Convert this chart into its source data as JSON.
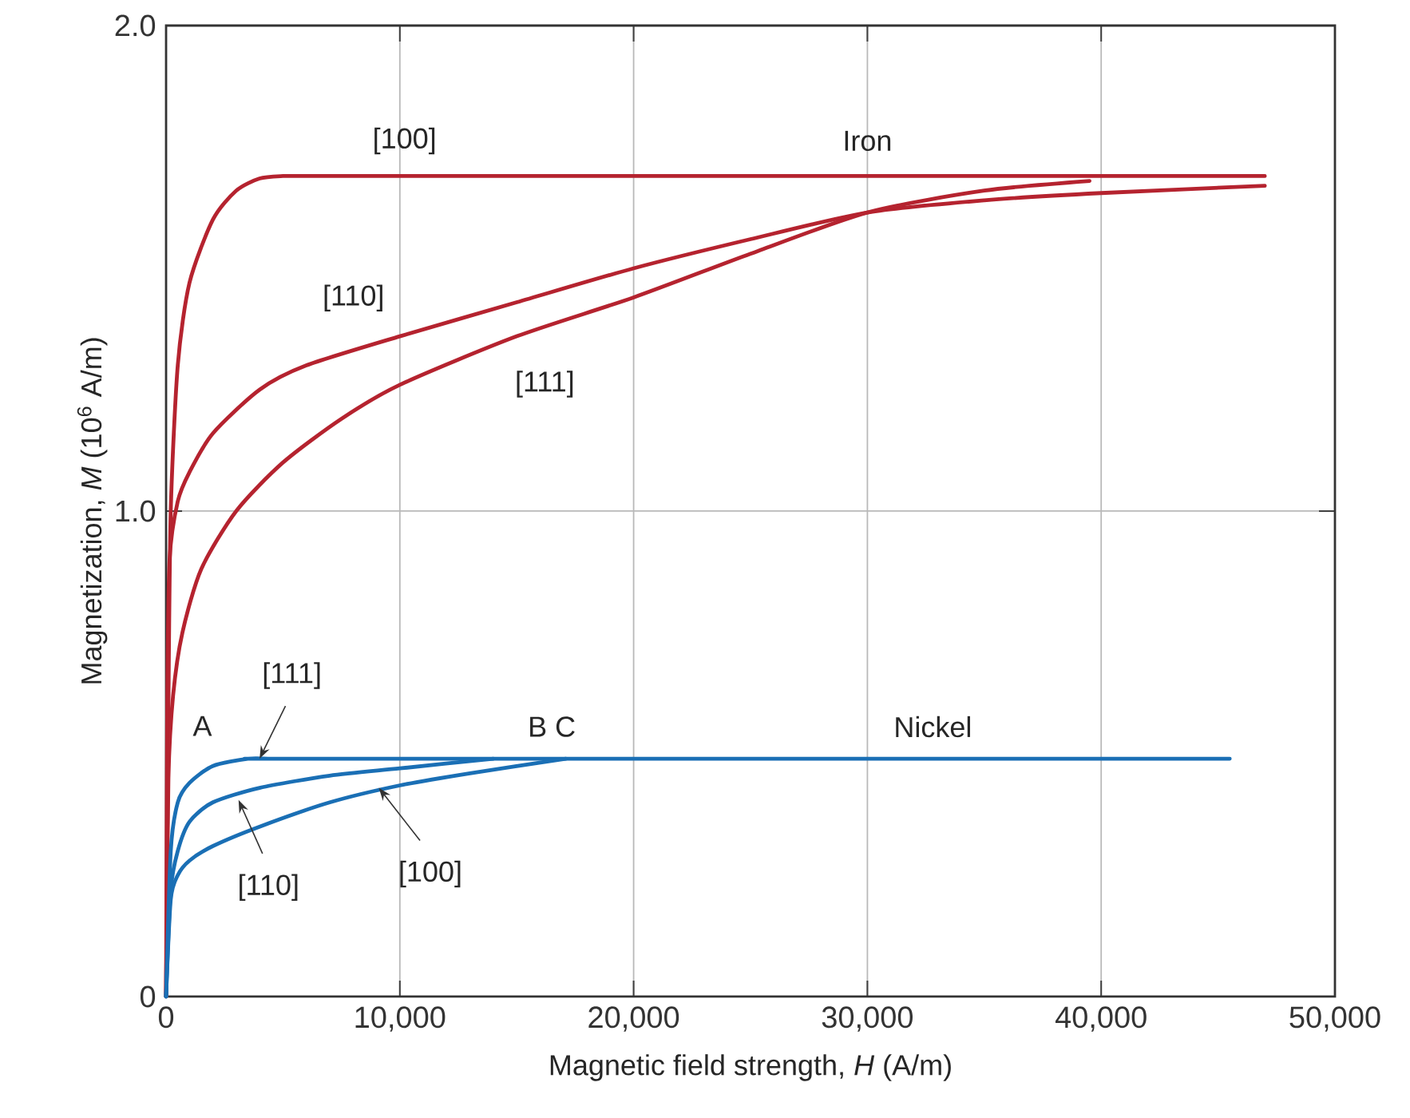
{
  "chart_data": {
    "type": "line",
    "xlabel": "Magnetic field strength, *H* (A/m)",
    "ylabel": "Magnetization, *M* (10$^{6}$ A/m)",
    "xlim": [
      0,
      50000
    ],
    "ylim": [
      0,
      2.0
    ],
    "xticks": [
      0,
      {
        "value": 10000,
        "label": "10,000"
      },
      {
        "value": 20000,
        "label": "20,000"
      },
      {
        "value": 30000,
        "label": "30,000"
      },
      {
        "value": 40000,
        "label": "40,000"
      },
      {
        "value": 50000,
        "label": "50,000"
      }
    ],
    "yticks": [
      0,
      {
        "value": 1,
        "label": "1.0"
      },
      {
        "value": 2,
        "label": "2.0"
      }
    ],
    "grid": true,
    "marker": "none",
    "line_style": "solid",
    "series": [
      {
        "color": "#b5232f",
        "x": [
          0,
          100,
          200,
          500,
          1000,
          2000,
          3000,
          4000,
          5000,
          6000,
          8000,
          47000
        ],
        "values": [
          0,
          0.6,
          1.0,
          1.3,
          1.47,
          1.6,
          1.66,
          1.685,
          1.69,
          1.69,
          1.69,
          1.69
        ]
      },
      {
        "color": "#b5232f",
        "x": [
          0,
          50,
          150,
          500,
          1000,
          2000,
          4000,
          6000,
          10000,
          15000,
          20000,
          25000,
          30000,
          35000,
          40000,
          47000
        ],
        "values": [
          0,
          0.6,
          0.9,
          1.02,
          1.08,
          1.16,
          1.25,
          1.3,
          1.36,
          1.43,
          1.5,
          1.56,
          1.615,
          1.64,
          1.655,
          1.67
        ]
      },
      {
        "color": "#b5232f",
        "x": [
          0,
          100,
          300,
          700,
          1500,
          3000,
          5000,
          7500,
          10000,
          15000,
          20000,
          25000,
          30000,
          35000,
          39500
        ],
        "values": [
          0,
          0.45,
          0.62,
          0.75,
          0.88,
          1.0,
          1.1,
          1.19,
          1.26,
          1.36,
          1.44,
          1.53,
          1.615,
          1.66,
          1.68
        ]
      },
      {
        "color": "#1a6fb5",
        "x": [
          0,
          200,
          500,
          1000,
          2000,
          3500,
          4500,
          6000,
          45500
        ],
        "values": [
          0,
          0.3,
          0.4,
          0.44,
          0.475,
          0.49,
          0.49,
          0.49,
          0.49
        ]
      },
      {
        "color": "#1a6fb5",
        "x": [
          0,
          200,
          500,
          1000,
          2000,
          4000,
          7000,
          10000,
          14000
        ],
        "values": [
          0,
          0.22,
          0.3,
          0.36,
          0.4,
          0.43,
          0.455,
          0.47,
          0.49
        ]
      },
      {
        "color": "#1a6fb5",
        "x": [
          0,
          200,
          500,
          1000,
          2000,
          4000,
          7000,
          10000,
          13000,
          17100
        ],
        "values": [
          0,
          0.2,
          0.25,
          0.28,
          0.31,
          0.35,
          0.4,
          0.435,
          0.46,
          0.49
        ]
      }
    ],
    "annotations": [
      {
        "text": "[100]",
        "x": 10200,
        "y": 1.69
      },
      {
        "text": "Iron",
        "x": 30000,
        "y": 1.69
      },
      {
        "text": "[110]",
        "x": 8700,
        "y": 1.34
      },
      {
        "text": "[111]",
        "x": 16200,
        "y": 1.38
      },
      {
        "text": "A",
        "x": 2100,
        "y": 0.475
      },
      {
        "text": "B C",
        "x": 16500,
        "y": 0.49
      },
      {
        "text": "Nickel",
        "x": 32800,
        "y": 0.49
      },
      {
        "text": "[111]",
        "x": 4000,
        "y": 0.49
      },
      {
        "text": "[110]",
        "x": 3100,
        "y": 0.405
      },
      {
        "text": "[100]",
        "x": 9100,
        "y": 0.43
      }
    ]
  }
}
